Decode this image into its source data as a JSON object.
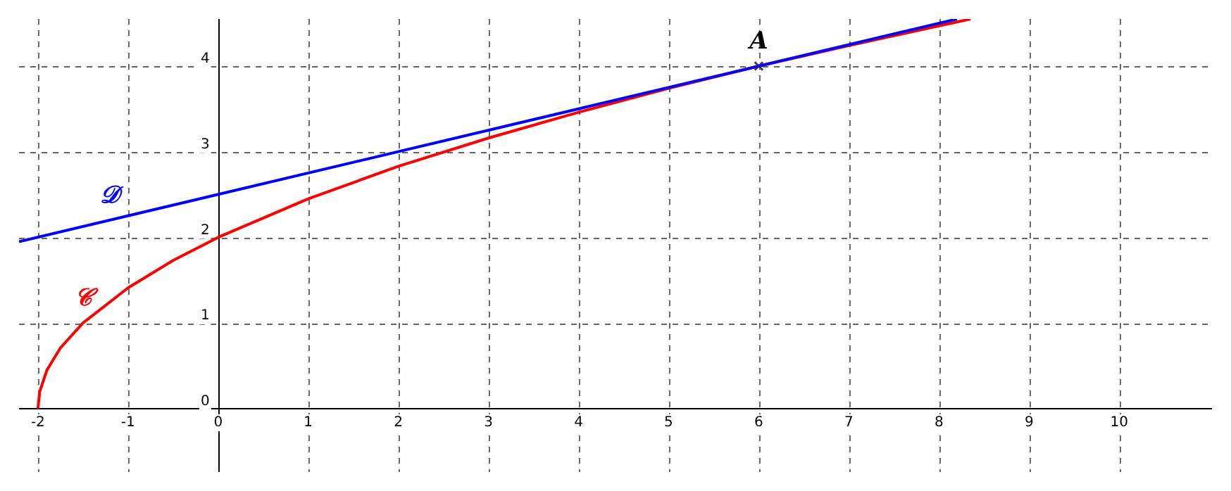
{
  "chart_data": {
    "type": "line",
    "xlim": [
      -2.21,
      11.03
    ],
    "ylim": [
      -0.74,
      4.55
    ],
    "xticks": [
      -2,
      -1,
      0,
      1,
      2,
      3,
      4,
      5,
      6,
      7,
      8,
      9,
      10
    ],
    "yticks": [
      0,
      1,
      2,
      3,
      4
    ],
    "grid": true,
    "legend": false,
    "series": [
      {
        "type": "line",
        "color": "#0000ff",
        "x": [
          -2.21,
          8.2
        ],
        "values": [
          1.95,
          4.55
        ]
      },
      {
        "type": "line",
        "color": "#ff0000",
        "x": [
          -2,
          -1.98,
          -1.9,
          -1.75,
          -1.5,
          -1,
          -0.5,
          0,
          1,
          2,
          3,
          4,
          5,
          6,
          7,
          8,
          8.35
        ],
        "values": [
          0,
          0.2,
          0.45,
          0.71,
          1,
          1.41,
          1.73,
          2,
          2.45,
          2.83,
          3.16,
          3.46,
          3.74,
          4,
          4.24,
          4.47,
          4.55
        ]
      },
      {
        "type": "scatter",
        "color": "#404040",
        "marker": "cross",
        "x": [
          6
        ],
        "values": [
          4
        ]
      }
    ],
    "annotations": [
      {
        "text": "A",
        "x": 6,
        "y": 4
      },
      {
        "text": "𝒟",
        "x": -1.2,
        "y": 2.2
      },
      {
        "text": "𝒞",
        "x": -1.5,
        "y": 1
      }
    ]
  }
}
